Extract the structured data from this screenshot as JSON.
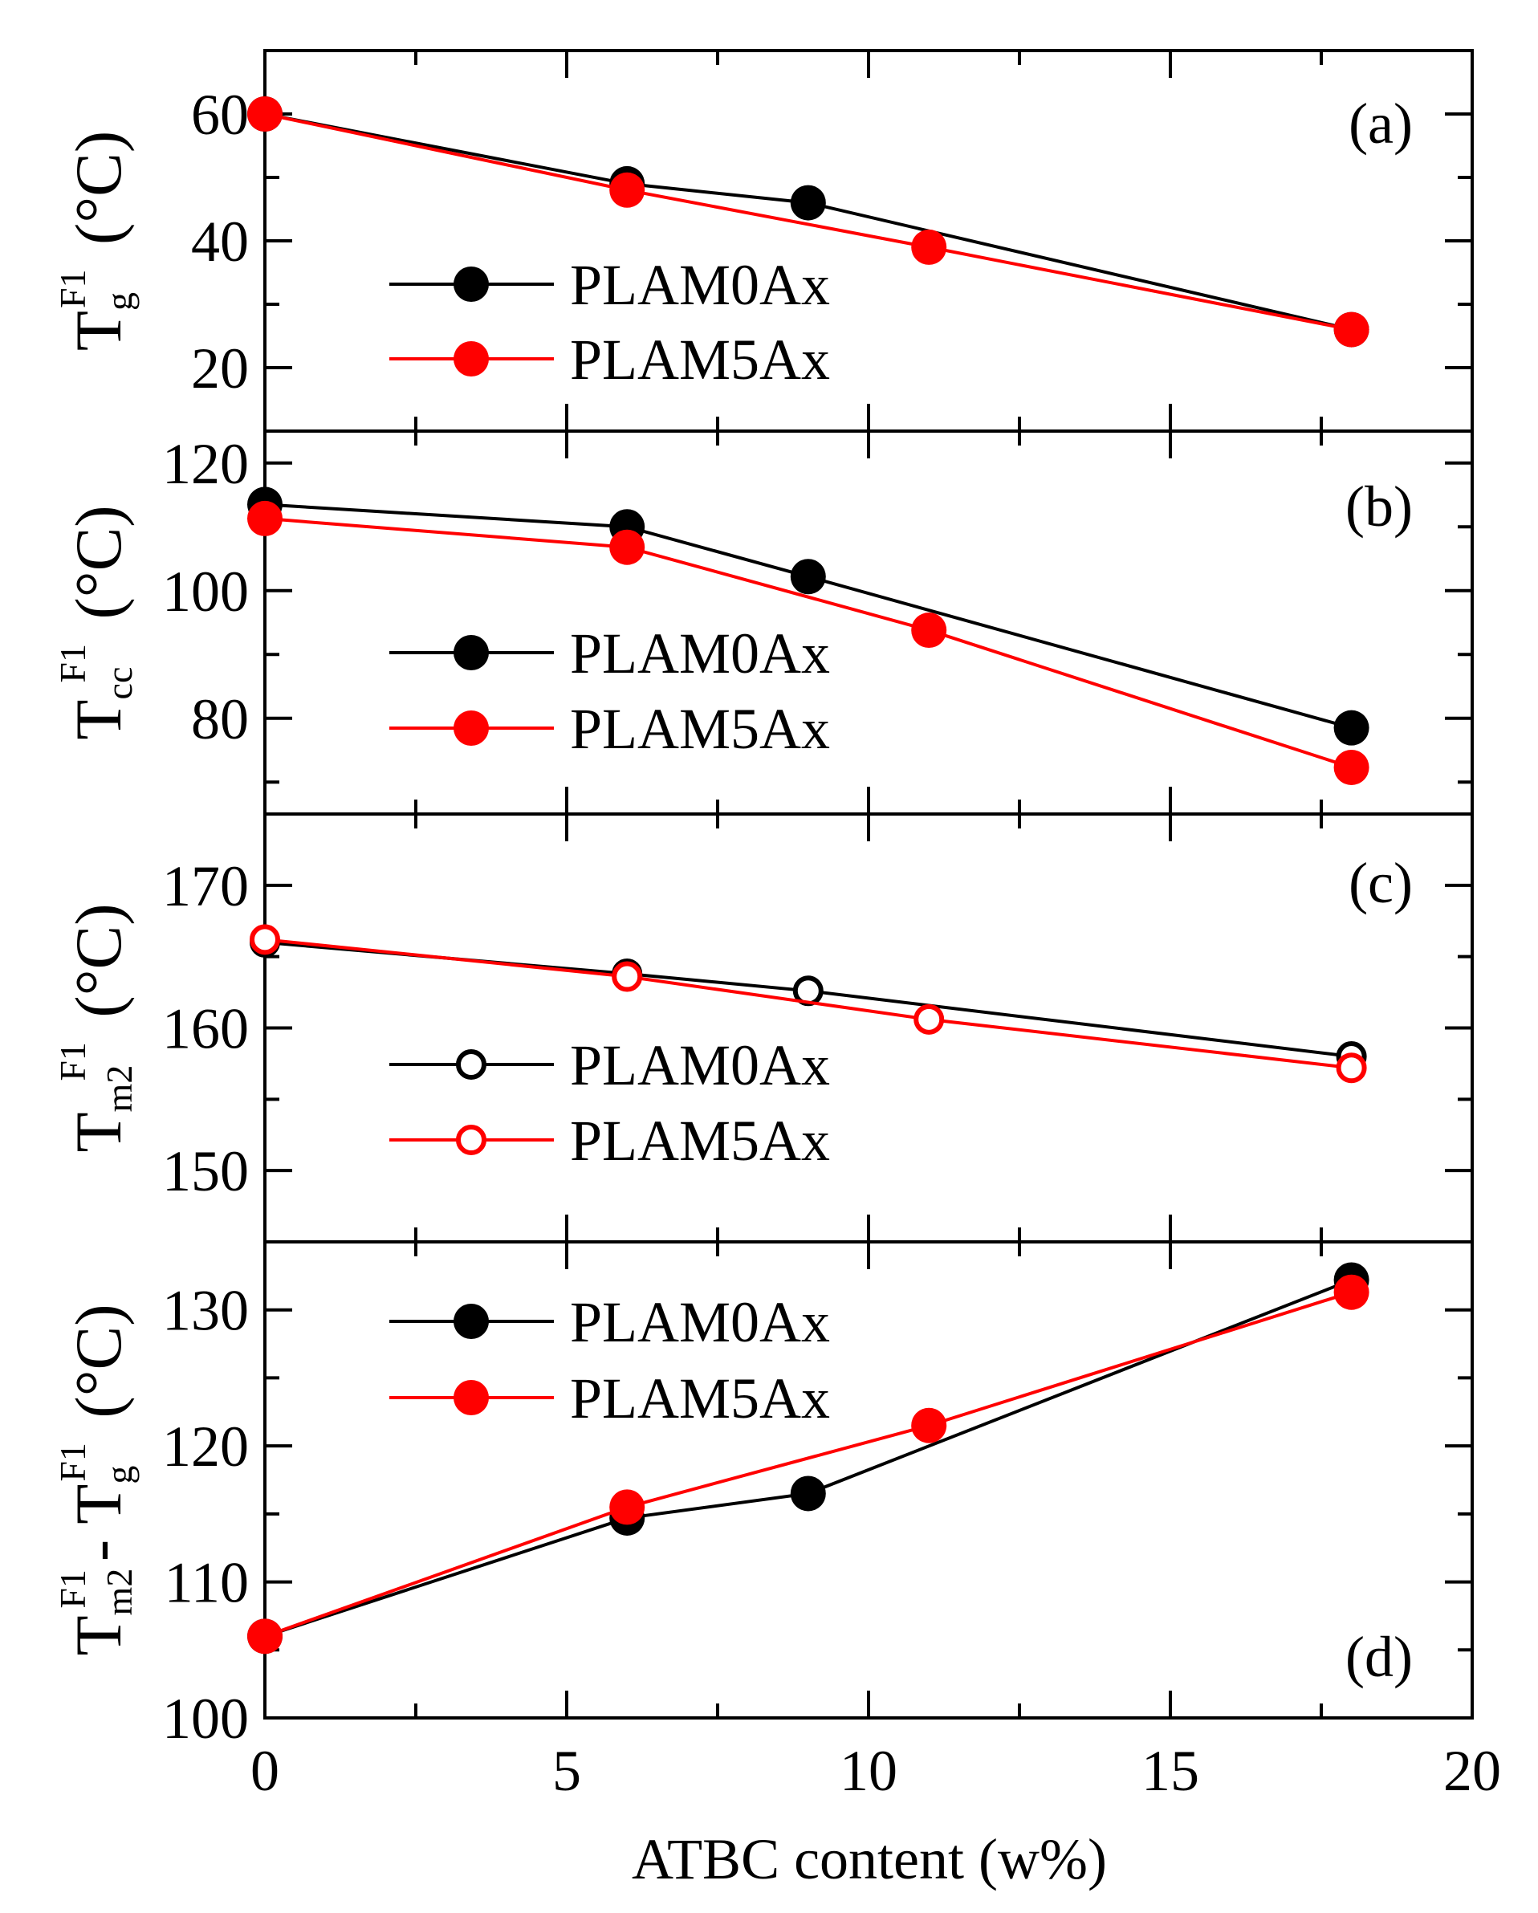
{
  "figure": {
    "xlabel": "ATBC content (w%)",
    "x_ticks": [
      0,
      5,
      10,
      15,
      20
    ],
    "xlim": [
      0,
      20
    ]
  },
  "chart_data": [
    {
      "type": "line",
      "panel_label": "(a)",
      "ylabel": {
        "main": "T",
        "sub": "g",
        "sup": "F1",
        "unit": "(°C)"
      },
      "ylim": [
        10,
        70
      ],
      "y_ticks": [
        20,
        40,
        60
      ],
      "y_minor": [
        10,
        30,
        50,
        70
      ],
      "marker": "filled",
      "legend": [
        "PLAM0Ax",
        "PLAM5Ax"
      ],
      "series": [
        {
          "name": "PLAM0Ax",
          "color": "#000000",
          "x": [
            0,
            6,
            9,
            18
          ],
          "y": [
            60,
            49,
            46,
            26
          ]
        },
        {
          "name": "PLAM5Ax",
          "color": "#ff0000",
          "x": [
            0,
            6,
            11,
            18
          ],
          "y": [
            60,
            48,
            39,
            26
          ]
        }
      ]
    },
    {
      "type": "line",
      "panel_label": "(b)",
      "ylabel": {
        "main": "T",
        "sub": "cc",
        "sup": "F1",
        "unit": "(°C)"
      },
      "ylim": [
        65,
        125
      ],
      "y_ticks": [
        80,
        100,
        120
      ],
      "y_minor": [
        70,
        90,
        110
      ],
      "marker": "filled",
      "legend": [
        "PLAM0Ax",
        "PLAM5Ax"
      ],
      "series": [
        {
          "name": "PLAM0Ax",
          "color": "#000000",
          "x": [
            0,
            6,
            9,
            18
          ],
          "y": [
            113.5,
            110,
            102.2,
            78.5
          ]
        },
        {
          "name": "PLAM5Ax",
          "color": "#ff0000",
          "x": [
            0,
            6,
            11,
            18
          ],
          "y": [
            111.3,
            106.8,
            93.8,
            72.3
          ]
        }
      ]
    },
    {
      "type": "line",
      "panel_label": "(c)",
      "ylabel": {
        "main": "T",
        "sub": "m2",
        "sup": "F1",
        "unit": "(°C)"
      },
      "ylim": [
        145,
        175
      ],
      "y_ticks": [
        150,
        160,
        170
      ],
      "y_minor": [
        155,
        165
      ],
      "marker": "open",
      "legend": [
        "PLAM0Ax",
        "PLAM5Ax"
      ],
      "series": [
        {
          "name": "PLAM0Ax",
          "color": "#000000",
          "x": [
            0,
            6,
            9,
            18
          ],
          "y": [
            166,
            163.8,
            162.6,
            158
          ]
        },
        {
          "name": "PLAM5Ax",
          "color": "#ff0000",
          "x": [
            0,
            6,
            11,
            18
          ],
          "y": [
            166.2,
            163.6,
            160.6,
            157.2
          ]
        }
      ]
    },
    {
      "type": "line",
      "panel_label": "(d)",
      "ylabel": {
        "main1": "T",
        "sub1": "m2",
        "sup1": "F1",
        "dash": "- T",
        "sub2": "g",
        "sup2": "F1",
        "unit": "(°C)"
      },
      "ylim": [
        100,
        135
      ],
      "y_ticks": [
        100,
        110,
        120,
        130
      ],
      "y_minor": [
        105,
        115,
        125
      ],
      "marker": "filled",
      "legend": [
        "PLAM0Ax",
        "PLAM5Ax"
      ],
      "series": [
        {
          "name": "PLAM0Ax",
          "color": "#000000",
          "x": [
            0,
            6,
            9,
            18
          ],
          "y": [
            106,
            114.7,
            116.5,
            132.2
          ]
        },
        {
          "name": "PLAM5Ax",
          "color": "#ff0000",
          "x": [
            0,
            6,
            11,
            18
          ],
          "y": [
            106,
            115.5,
            121.5,
            131.3
          ]
        }
      ]
    }
  ]
}
